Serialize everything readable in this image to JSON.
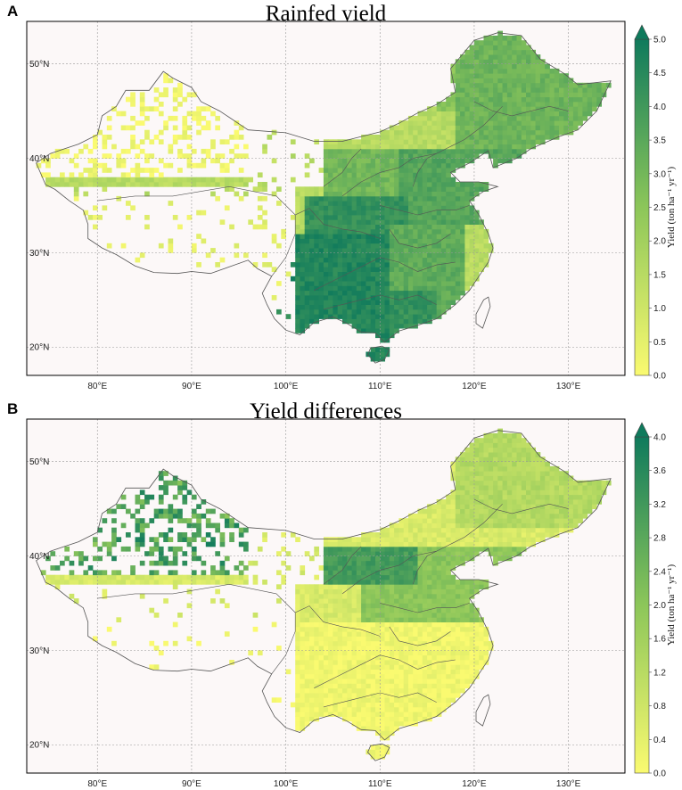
{
  "panels": [
    {
      "letter": "A",
      "title": "Rainfed yield",
      "colorbar": {
        "label": "Yield (ton ha⁻¹ yr⁻¹)",
        "ticks": [
          "0.0",
          "0.5",
          "1.0",
          "1.5",
          "2.0",
          "2.5",
          "3.0",
          "3.5",
          "4.0",
          "4.5",
          "5.0"
        ],
        "extend": "max"
      }
    },
    {
      "letter": "B",
      "title": "Yield differences",
      "colorbar": {
        "label": "Yield (ton ha⁻¹ yr⁻¹)",
        "ticks": [
          "0.0",
          "0.4",
          "0.8",
          "1.2",
          "1.6",
          "2.0",
          "2.4",
          "2.8",
          "3.2",
          "3.6",
          "4.0"
        ],
        "extend": "max"
      }
    }
  ],
  "axes": {
    "lon_ticks": [
      "80°E",
      "90°E",
      "100°E",
      "110°E",
      "120°E",
      "130°E"
    ],
    "lat_ticks": [
      "20°N",
      "30°N",
      "40°N",
      "50°N"
    ],
    "lon_range": [
      72.5,
      136
    ],
    "lat_range": [
      17,
      54.5
    ],
    "gridlines": true
  },
  "colors": {
    "map_background": "#fcf8f8",
    "low": "#fafa70",
    "mid": "#8cc65a",
    "high": "#0f7a5c",
    "border": "#555555"
  }
}
